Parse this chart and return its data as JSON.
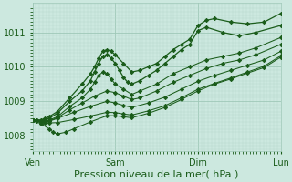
{
  "background_color": "#cce8df",
  "grid_color_major": "#9fc8b8",
  "grid_color_minor": "#b8d8cc",
  "line_color": "#1a5c1a",
  "marker": "D",
  "xlabel": "Pression niveau de la mer( hPa )",
  "xlabel_fontsize": 8,
  "xtick_labels": [
    "Ven",
    "Sam",
    "Dim",
    "Lun"
  ],
  "xtick_positions": [
    0,
    1,
    2,
    3
  ],
  "ylim": [
    1007.55,
    1011.85
  ],
  "yticks": [
    1008,
    1009,
    1010,
    1011
  ],
  "xlim": [
    0.0,
    3.0
  ],
  "lines": [
    {
      "x": [
        0.0,
        0.05,
        0.1,
        0.15,
        0.2,
        0.3,
        0.45,
        0.6,
        0.7,
        0.75,
        0.8,
        0.85,
        0.9,
        0.95,
        1.0,
        1.1,
        1.2,
        1.3,
        1.4,
        1.5,
        1.6,
        1.7,
        1.8,
        1.9,
        2.0,
        2.1,
        2.2,
        2.4,
        2.6,
        2.8,
        3.0
      ],
      "y": [
        1008.45,
        1008.45,
        1008.45,
        1008.5,
        1008.55,
        1008.7,
        1009.1,
        1009.5,
        1009.8,
        1010.0,
        1010.25,
        1010.45,
        1010.5,
        1010.45,
        1010.35,
        1010.1,
        1009.85,
        1009.9,
        1010.0,
        1010.1,
        1010.3,
        1010.5,
        1010.65,
        1010.8,
        1011.2,
        1011.35,
        1011.4,
        1011.3,
        1011.25,
        1011.3,
        1011.55
      ]
    },
    {
      "x": [
        0.0,
        0.05,
        0.1,
        0.15,
        0.2,
        0.3,
        0.45,
        0.6,
        0.7,
        0.75,
        0.8,
        0.85,
        0.9,
        0.95,
        1.0,
        1.05,
        1.1,
        1.15,
        1.2,
        1.3,
        1.4,
        1.5,
        1.6,
        1.7,
        1.8,
        1.9,
        2.0,
        2.1,
        2.3,
        2.5,
        2.7,
        3.0
      ],
      "y": [
        1008.45,
        1008.45,
        1008.45,
        1008.48,
        1008.5,
        1008.65,
        1009.0,
        1009.3,
        1009.6,
        1009.85,
        1010.1,
        1010.3,
        1010.35,
        1010.25,
        1010.1,
        1009.9,
        1009.7,
        1009.55,
        1009.5,
        1009.6,
        1009.75,
        1009.9,
        1010.1,
        1010.3,
        1010.5,
        1010.65,
        1011.05,
        1011.15,
        1011.0,
        1010.9,
        1011.0,
        1011.2
      ]
    },
    {
      "x": [
        0.0,
        0.05,
        0.1,
        0.15,
        0.2,
        0.3,
        0.45,
        0.6,
        0.7,
        0.75,
        0.8,
        0.85,
        0.9,
        0.95,
        1.0,
        1.1,
        1.2,
        1.3,
        1.5,
        1.7,
        1.9,
        2.1,
        2.3,
        2.5,
        2.7,
        3.0
      ],
      "y": [
        1008.45,
        1008.44,
        1008.42,
        1008.43,
        1008.45,
        1008.55,
        1008.85,
        1009.1,
        1009.35,
        1009.55,
        1009.75,
        1009.85,
        1009.8,
        1009.65,
        1009.5,
        1009.35,
        1009.2,
        1009.3,
        1009.5,
        1009.8,
        1010.0,
        1010.2,
        1010.3,
        1010.4,
        1010.55,
        1010.85
      ]
    },
    {
      "x": [
        0.0,
        0.05,
        0.1,
        0.15,
        0.2,
        0.3,
        0.45,
        0.6,
        0.75,
        0.9,
        1.0,
        1.1,
        1.2,
        1.3,
        1.5,
        1.7,
        1.9,
        2.1,
        2.3,
        2.5,
        2.7,
        3.0
      ],
      "y": [
        1008.45,
        1008.43,
        1008.42,
        1008.42,
        1008.43,
        1008.52,
        1008.75,
        1008.95,
        1009.15,
        1009.3,
        1009.25,
        1009.15,
        1009.05,
        1009.1,
        1009.3,
        1009.55,
        1009.75,
        1009.95,
        1010.1,
        1010.2,
        1010.35,
        1010.65
      ]
    },
    {
      "x": [
        0.0,
        0.1,
        0.2,
        0.3,
        0.5,
        0.7,
        0.9,
        1.0,
        1.1,
        1.2,
        1.4,
        1.6,
        1.8,
        2.0,
        2.2,
        2.4,
        2.6,
        2.8,
        3.0
      ],
      "y": [
        1008.45,
        1008.42,
        1008.42,
        1008.5,
        1008.68,
        1008.85,
        1009.0,
        1008.95,
        1008.88,
        1008.82,
        1008.95,
        1009.12,
        1009.35,
        1009.58,
        1009.75,
        1009.9,
        1010.05,
        1010.2,
        1010.45
      ]
    },
    {
      "x": [
        0.0,
        0.1,
        0.2,
        0.25,
        0.3,
        0.4,
        0.5,
        0.7,
        0.9,
        1.0,
        1.1,
        1.2,
        1.4,
        1.6,
        1.8,
        2.0,
        2.2,
        2.4,
        2.6,
        2.8,
        3.0
      ],
      "y": [
        1008.45,
        1008.35,
        1008.2,
        1008.1,
        1008.05,
        1008.1,
        1008.2,
        1008.4,
        1008.58,
        1008.58,
        1008.55,
        1008.52,
        1008.65,
        1008.82,
        1009.05,
        1009.3,
        1009.5,
        1009.65,
        1009.82,
        1009.98,
        1010.28
      ]
    },
    {
      "x": [
        0.0,
        0.05,
        0.1,
        0.15,
        0.2,
        0.3,
        0.5,
        0.7,
        0.9,
        1.0,
        1.1,
        1.2,
        1.4,
        1.6,
        1.8,
        2.0,
        2.2,
        2.4,
        2.6,
        2.8,
        3.0
      ],
      "y": [
        1008.45,
        1008.42,
        1008.4,
        1008.38,
        1008.37,
        1008.38,
        1008.47,
        1008.57,
        1008.68,
        1008.67,
        1008.63,
        1008.6,
        1008.72,
        1008.87,
        1009.1,
        1009.35,
        1009.52,
        1009.68,
        1009.85,
        1010.02,
        1010.32
      ]
    }
  ]
}
